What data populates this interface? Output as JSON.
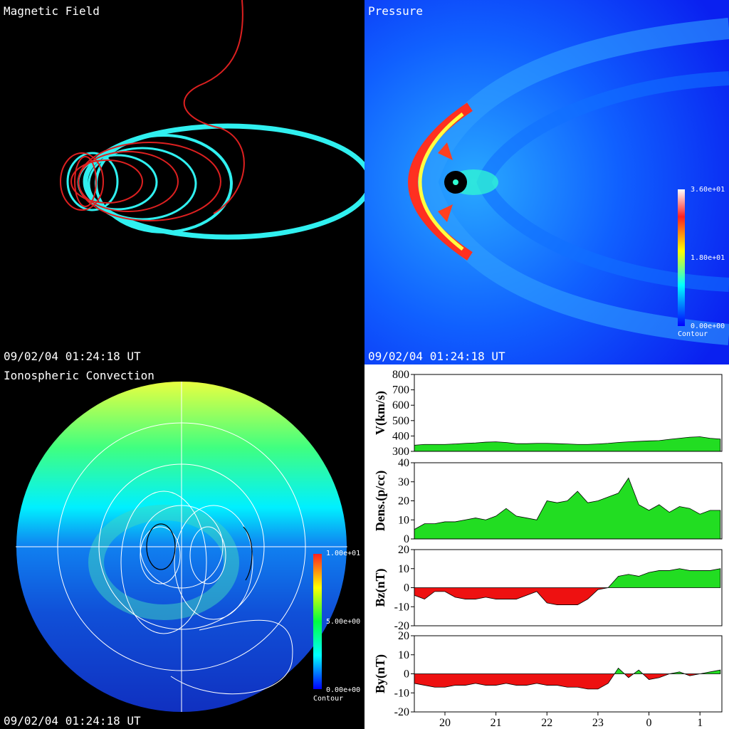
{
  "panels": [
    {
      "title": "Magnetic Field",
      "timestamp": "09/02/04 01:24:18 UT"
    },
    {
      "title": "Pressure",
      "timestamp": "09/02/04 01:24:18 UT",
      "colorbar": {
        "labels": [
          "3.60e+01",
          "1.80e+01",
          "0.00e+00"
        ],
        "caption": "Contour"
      }
    },
    {
      "title": "Ionospheric Convection",
      "timestamp": "09/02/04 01:24:18 UT",
      "colorbar": {
        "labels": [
          "1.00e+01",
          "5.00e+00",
          "0.00e+00"
        ],
        "caption": "Contour"
      }
    }
  ],
  "chart_data": [
    {
      "type": "area",
      "ylabel": "V(km/s)",
      "color": "#22dd22",
      "negative_color": "#ee1111",
      "x": [
        19.4,
        19.6,
        19.8,
        20.0,
        20.2,
        20.4,
        20.6,
        20.8,
        21.0,
        21.2,
        21.4,
        21.6,
        21.8,
        22.0,
        22.2,
        22.4,
        22.6,
        22.8,
        23.0,
        23.2,
        23.4,
        23.6,
        23.8,
        24.0,
        24.2,
        24.4,
        24.6,
        24.8,
        25.0,
        25.2,
        25.4
      ],
      "values": [
        340,
        345,
        345,
        345,
        348,
        352,
        355,
        360,
        362,
        358,
        350,
        350,
        352,
        352,
        350,
        348,
        345,
        345,
        348,
        352,
        358,
        362,
        365,
        368,
        370,
        378,
        385,
        392,
        395,
        385,
        380
      ],
      "xlim": [
        19.4,
        25.43
      ],
      "ylim": [
        300,
        800
      ],
      "yticks": [
        300,
        400,
        500,
        600,
        700,
        800
      ]
    },
    {
      "type": "area",
      "ylabel": "Dens.(p/cc)",
      "color": "#22dd22",
      "negative_color": "#ee1111",
      "x": [
        19.4,
        19.6,
        19.8,
        20.0,
        20.2,
        20.4,
        20.6,
        20.8,
        21.0,
        21.2,
        21.4,
        21.6,
        21.8,
        22.0,
        22.2,
        22.4,
        22.6,
        22.8,
        23.0,
        23.2,
        23.4,
        23.6,
        23.8,
        24.0,
        24.2,
        24.4,
        24.6,
        24.8,
        25.0,
        25.2,
        25.4
      ],
      "values": [
        5,
        8,
        8,
        9,
        9,
        10,
        11,
        10,
        12,
        16,
        12,
        11,
        10,
        20,
        19,
        20,
        25,
        19,
        20,
        22,
        24,
        32,
        18,
        15,
        18,
        14,
        17,
        16,
        13,
        15,
        15
      ],
      "xlim": [
        19.4,
        25.43
      ],
      "ylim": [
        0,
        40
      ],
      "yticks": [
        0,
        10,
        20,
        30,
        40
      ]
    },
    {
      "type": "area",
      "ylabel": "Bz(nT)",
      "color": "#22dd22",
      "negative_color": "#ee1111",
      "x": [
        19.4,
        19.6,
        19.8,
        20.0,
        20.2,
        20.4,
        20.6,
        20.8,
        21.0,
        21.2,
        21.4,
        21.6,
        21.8,
        22.0,
        22.2,
        22.4,
        22.6,
        22.8,
        23.0,
        23.2,
        23.4,
        23.6,
        23.8,
        24.0,
        24.2,
        24.4,
        24.6,
        24.8,
        25.0,
        25.2,
        25.4
      ],
      "values": [
        -4,
        -6,
        -2,
        -2,
        -5,
        -6,
        -6,
        -5,
        -6,
        -6,
        -6,
        -4,
        -2,
        -8,
        -9,
        -9,
        -9,
        -6,
        -1,
        0,
        6,
        7,
        6,
        8,
        9,
        9,
        10,
        9,
        9,
        9,
        10
      ],
      "xlim": [
        19.4,
        25.43
      ],
      "ylim": [
        -20,
        20
      ],
      "yticks": [
        -20,
        -10,
        0,
        10,
        20
      ]
    },
    {
      "type": "area",
      "ylabel": "By(nT)",
      "color": "#22dd22",
      "negative_color": "#ee1111",
      "x": [
        19.4,
        19.6,
        19.8,
        20.0,
        20.2,
        20.4,
        20.6,
        20.8,
        21.0,
        21.2,
        21.4,
        21.6,
        21.8,
        22.0,
        22.2,
        22.4,
        22.6,
        22.8,
        23.0,
        23.2,
        23.4,
        23.6,
        23.8,
        24.0,
        24.2,
        24.4,
        24.6,
        24.8,
        25.0,
        25.2,
        25.4
      ],
      "values": [
        -5,
        -6,
        -7,
        -7,
        -6,
        -6,
        -5,
        -6,
        -6,
        -5,
        -6,
        -6,
        -5,
        -6,
        -6,
        -7,
        -7,
        -8,
        -8,
        -5,
        3,
        -2,
        2,
        -3,
        -2,
        0,
        1,
        -1,
        0,
        1,
        2
      ],
      "xlim": [
        19.4,
        25.43
      ],
      "ylim": [
        -20,
        20
      ],
      "yticks": [
        -20,
        -10,
        0,
        10,
        20
      ],
      "xticks": [
        20,
        21,
        22,
        23,
        {
          "value": 24,
          "label": "0"
        },
        {
          "value": 25,
          "label": "1"
        }
      ]
    }
  ]
}
